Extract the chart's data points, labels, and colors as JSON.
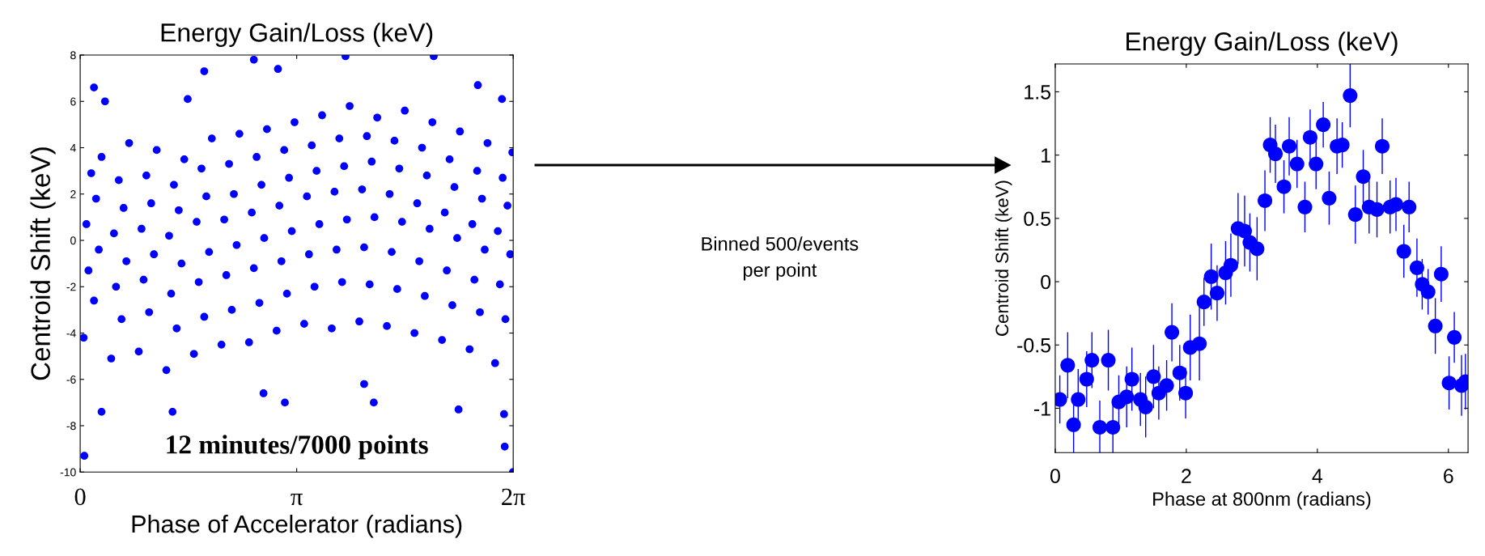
{
  "chart_data": [
    {
      "type": "scatter",
      "title": "Energy Gain/Loss (keV)",
      "xlabel": "Phase of Accelerator (radians)",
      "ylabel": "Centroid Shift (keV)",
      "color": "#0000ff",
      "marker": "circle",
      "xlim": [
        0,
        6.2832
      ],
      "ylim": [
        -10,
        8
      ],
      "xticks": [
        0,
        {
          "value": 3.1416,
          "label": "π"
        },
        {
          "value": 6.2832,
          "label": "2π"
        }
      ],
      "yticks": [
        -10,
        -8,
        -6,
        -4,
        -2,
        0,
        2,
        4,
        6,
        8
      ],
      "annotations": [
        "12 minutes/7000 points"
      ],
      "x": [
        0.2,
        0.36,
        1.56,
        1.8,
        2.52,
        2.87,
        3.85,
        5.13,
        5.77,
        6.12,
        0.06,
        6.16,
        6.28,
        2.97,
        4.26,
        5.49,
        1.34,
        0.31,
        6.15,
        2.66,
        4.12,
        0.05,
        0.2,
        0.12,
        0.27,
        0.09,
        0.23,
        0.16,
        0.31,
        0.45,
        0.6,
        0.52,
        0.67,
        0.49,
        0.63,
        0.56,
        0.71,
        0.85,
        1.0,
        0.92,
        1.07,
        0.89,
        1.03,
        0.96,
        1.11,
        1.25,
        1.4,
        1.32,
        1.47,
        1.29,
        1.43,
        1.36,
        1.51,
        1.65,
        1.8,
        1.72,
        1.87,
        1.69,
        1.83,
        1.76,
        1.91,
        2.05,
        2.2,
        2.12,
        2.27,
        2.09,
        2.23,
        2.16,
        2.31,
        2.45,
        2.6,
        2.52,
        2.67,
        2.49,
        2.63,
        2.56,
        2.71,
        2.85,
        3.0,
        2.92,
        3.07,
        2.89,
        3.03,
        2.96,
        3.11,
        3.25,
        3.4,
        3.32,
        3.47,
        3.29,
        3.43,
        3.36,
        3.51,
        3.65,
        3.8,
        3.72,
        3.87,
        3.69,
        3.83,
        3.76,
        3.91,
        4.05,
        4.2,
        4.12,
        4.27,
        4.09,
        4.23,
        4.16,
        4.31,
        4.45,
        4.6,
        4.52,
        4.67,
        4.49,
        4.63,
        4.56,
        4.71,
        4.85,
        5.0,
        4.92,
        5.07,
        4.89,
        5.03,
        4.96,
        5.11,
        5.25,
        5.4,
        5.32,
        5.47,
        5.29,
        5.43,
        5.36,
        5.51,
        5.65,
        5.8,
        5.72,
        5.87,
        5.69,
        5.83,
        5.76,
        5.91,
        6.02,
        6.17,
        6.09,
        6.24,
        6.06,
        6.2,
        6.13,
        6.27
      ],
      "values": [
        6.6,
        6.0,
        6.1,
        7.3,
        7.8,
        7.4,
        7.95,
        7.95,
        6.7,
        6.1,
        -9.3,
        -8.9,
        -10.0,
        -7.0,
        -7.0,
        -7.3,
        -7.4,
        -7.4,
        -7.5,
        -6.6,
        -6.2,
        -4.2,
        -2.6,
        -1.3,
        -0.4,
        0.7,
        1.8,
        2.9,
        3.6,
        -5.1,
        -3.4,
        -2.0,
        -0.9,
        0.3,
        1.4,
        2.6,
        4.2,
        -4.8,
        -3.1,
        -1.7,
        -0.6,
        0.5,
        1.6,
        2.8,
        3.9,
        -5.6,
        -3.8,
        -2.3,
        -1.0,
        0.2,
        1.3,
        2.4,
        3.5,
        -4.9,
        -3.3,
        -1.8,
        -0.5,
        0.8,
        1.9,
        3.1,
        4.4,
        -4.5,
        -3.0,
        -1.5,
        -0.2,
        0.9,
        2.0,
        3.3,
        4.6,
        -4.4,
        -2.7,
        -1.2,
        0.1,
        1.2,
        2.4,
        3.6,
        4.8,
        -3.9,
        -2.3,
        -0.9,
        0.4,
        1.5,
        2.7,
        3.9,
        5.1,
        -3.6,
        -2.0,
        -0.6,
        0.7,
        1.9,
        3.0,
        4.1,
        5.4,
        -3.8,
        -1.8,
        -0.4,
        0.9,
        2.1,
        3.2,
        4.4,
        5.8,
        -3.5,
        -1.9,
        -0.3,
        1.0,
        2.2,
        3.4,
        4.5,
        5.3,
        -3.7,
        -2.1,
        -0.5,
        0.8,
        2.0,
        3.1,
        4.3,
        5.6,
        -4.0,
        -2.4,
        -0.9,
        0.5,
        1.6,
        2.8,
        4.0,
        5.1,
        -4.3,
        -2.8,
        -1.3,
        0.1,
        1.2,
        2.3,
        3.5,
        4.7,
        -4.7,
        -3.1,
        -1.7,
        -0.4,
        0.7,
        1.8,
        3.0,
        4.2,
        -5.3,
        -3.4,
        -1.9,
        -0.6,
        0.4,
        1.5,
        2.7,
        3.8
      ]
    },
    {
      "type": "other",
      "annotations": [
        "Binned 500/events\nper point"
      ]
    },
    {
      "type": "scatter",
      "title": "Energy Gain/Loss (keV)",
      "xlabel": "Phase at 800nm (radians)",
      "ylabel": "Centroid Shift (keV)",
      "color": "#0000ff",
      "marker": "circle",
      "xlim": [
        0,
        6.3
      ],
      "ylim": [
        -1.35,
        1.72
      ],
      "xticks": [
        0,
        2,
        4,
        6
      ],
      "yticks": [
        -1,
        -0.5,
        0,
        0.5,
        1,
        1.5
      ],
      "x": [
        0.07,
        0.19,
        0.28,
        0.35,
        0.48,
        0.56,
        0.68,
        0.81,
        0.88,
        0.97,
        1.09,
        1.17,
        1.3,
        1.38,
        1.5,
        1.58,
        1.7,
        1.78,
        1.9,
        1.99,
        2.06,
        2.2,
        2.27,
        2.38,
        2.47,
        2.6,
        2.68,
        2.79,
        2.89,
        2.97,
        3.08,
        3.2,
        3.28,
        3.36,
        3.49,
        3.57,
        3.69,
        3.81,
        3.89,
        3.98,
        4.09,
        4.18,
        4.3,
        4.38,
        4.5,
        4.58,
        4.7,
        4.79,
        4.91,
        4.99,
        5.11,
        5.2,
        5.32,
        5.4,
        5.52,
        5.6,
        5.69,
        5.8,
        5.89,
        6.01,
        6.09,
        6.2,
        6.26
      ],
      "values": [
        -0.93,
        -0.66,
        -1.13,
        -0.93,
        -0.77,
        -0.62,
        -1.15,
        -0.62,
        -1.15,
        -0.95,
        -0.91,
        -0.77,
        -0.93,
        -0.99,
        -0.75,
        -0.88,
        -0.82,
        -0.4,
        -0.72,
        -0.88,
        -0.52,
        -0.49,
        -0.16,
        0.04,
        -0.09,
        0.07,
        0.13,
        0.42,
        0.4,
        0.31,
        0.26,
        0.64,
        1.08,
        1.01,
        0.75,
        1.07,
        0.93,
        0.59,
        1.14,
        0.93,
        1.24,
        0.66,
        1.07,
        1.08,
        1.47,
        0.53,
        0.83,
        0.59,
        0.57,
        1.07,
        0.59,
        0.61,
        0.24,
        0.59,
        0.11,
        -0.02,
        -0.08,
        -0.35,
        0.06,
        -0.8,
        -0.44,
        -0.82,
        -0.79
      ],
      "errors": [
        0.19,
        0.26,
        0.23,
        0.24,
        0.22,
        0.22,
        0.21,
        0.24,
        0.21,
        0.21,
        0.24,
        0.25,
        0.21,
        0.24,
        0.25,
        0.21,
        0.2,
        0.23,
        0.22,
        0.2,
        0.26,
        0.29,
        0.19,
        0.26,
        0.22,
        0.25,
        0.25,
        0.28,
        0.28,
        0.23,
        0.25,
        0.24,
        0.22,
        0.23,
        0.21,
        0.23,
        0.19,
        0.2,
        0.22,
        0.2,
        0.18,
        0.21,
        0.22,
        0.18,
        0.25,
        0.23,
        0.21,
        0.21,
        0.22,
        0.22,
        0.21,
        0.21,
        0.21,
        0.2,
        0.23,
        0.2,
        0.18,
        0.22,
        0.22,
        0.21,
        0.2,
        0.24,
        0.22
      ]
    }
  ]
}
